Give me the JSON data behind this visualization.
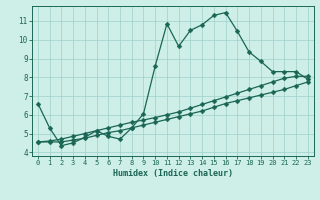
{
  "xlabel": "Humidex (Indice chaleur)",
  "bg_color": "#ceeee8",
  "grid_color": "#a0d0cc",
  "line_color": "#1a6655",
  "xlim": [
    -0.5,
    23.5
  ],
  "ylim": [
    3.8,
    11.8
  ],
  "yticks": [
    4,
    5,
    6,
    7,
    8,
    9,
    10,
    11
  ],
  "xticks": [
    0,
    1,
    2,
    3,
    4,
    5,
    6,
    7,
    8,
    9,
    10,
    11,
    12,
    13,
    14,
    15,
    16,
    17,
    18,
    19,
    20,
    21,
    22,
    23
  ],
  "curve1_x": [
    0,
    1,
    2,
    3,
    4,
    5,
    6,
    7,
    8,
    9,
    10,
    11,
    12,
    13,
    14,
    15,
    16,
    17,
    18,
    19,
    20,
    21,
    22,
    23
  ],
  "curve1_y": [
    6.6,
    5.3,
    4.35,
    4.5,
    4.8,
    5.15,
    4.85,
    4.7,
    5.3,
    6.05,
    8.6,
    10.85,
    9.65,
    10.5,
    10.8,
    11.3,
    11.45,
    10.45,
    9.35,
    8.85,
    8.3,
    8.3,
    8.3,
    7.9
  ],
  "curve2_x": [
    0,
    1,
    2,
    3,
    4,
    5,
    6,
    7,
    8,
    9,
    10,
    11,
    12,
    13,
    14,
    15,
    16,
    17,
    18,
    19,
    20,
    21,
    22,
    23
  ],
  "curve2_y": [
    4.55,
    4.55,
    4.55,
    4.65,
    4.75,
    4.9,
    5.05,
    5.15,
    5.3,
    5.45,
    5.6,
    5.75,
    5.9,
    6.05,
    6.2,
    6.4,
    6.6,
    6.75,
    6.9,
    7.05,
    7.2,
    7.35,
    7.55,
    7.75
  ],
  "curve3_x": [
    0,
    1,
    2,
    3,
    4,
    5,
    6,
    7,
    8,
    9,
    10,
    11,
    12,
    13,
    14,
    15,
    16,
    17,
    18,
    19,
    20,
    21,
    22,
    23
  ],
  "curve3_y": [
    4.55,
    4.6,
    4.7,
    4.85,
    5.0,
    5.15,
    5.3,
    5.45,
    5.6,
    5.72,
    5.85,
    6.0,
    6.15,
    6.35,
    6.55,
    6.75,
    6.95,
    7.15,
    7.35,
    7.55,
    7.75,
    7.95,
    8.05,
    8.05
  ]
}
